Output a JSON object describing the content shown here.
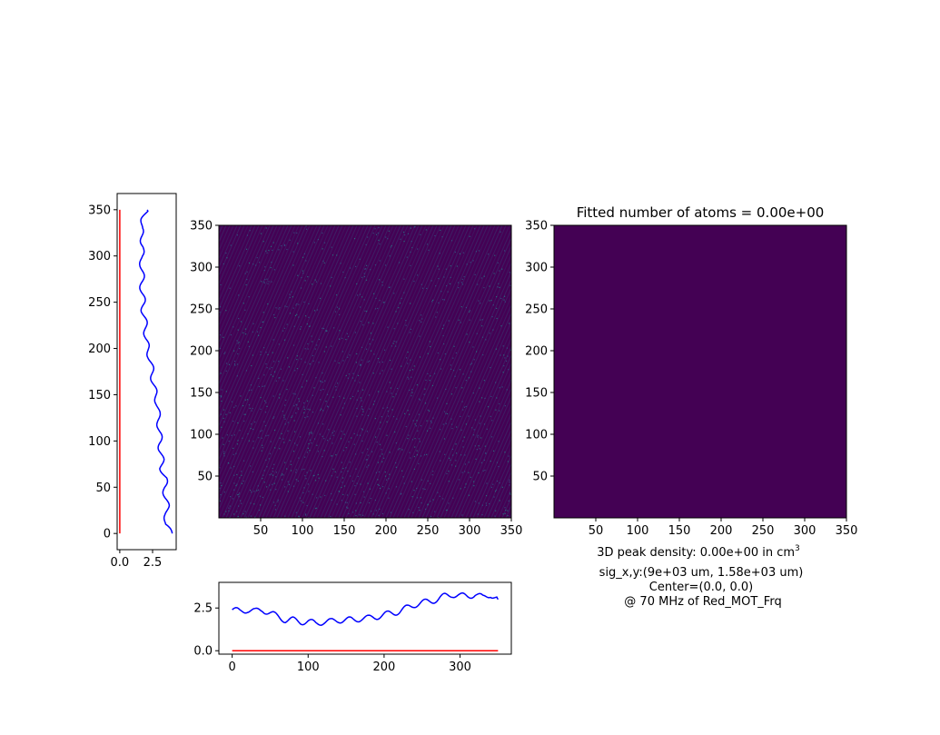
{
  "colors": {
    "profile_line": "#0000ff",
    "fit_line": "#ff0000",
    "image_dark": "#440154",
    "image_noise": "#31688e",
    "image_mid": "#21918c",
    "axes": "#000000"
  },
  "right_panel": {
    "title": "Fitted number of atoms = 0.00e+00",
    "annotations": {
      "density_prefix": "3D peak density: 0.00e+00 in cm",
      "density_exp": "3",
      "sigma": "sig_x,y:(9e+03 um, 1.58e+03 um)",
      "center": "Center=(0.0, 0.0)",
      "freq": "@ 70 MHz of Red_MOT_Frq"
    }
  },
  "chart_data": [
    {
      "id": "left-profile",
      "type": "line",
      "orientation": "vertical",
      "xlim": [
        -0.2,
        4.3
      ],
      "ylim": [
        -17.5,
        367.5
      ],
      "xticks": [
        0.0,
        2.5
      ],
      "xtick_labels": [
        "0.0",
        "2.5"
      ],
      "yticks": [
        0,
        50,
        100,
        150,
        200,
        250,
        300,
        350
      ],
      "ytick_labels": [
        "0",
        "50",
        "100",
        "150",
        "200",
        "250",
        "300",
        "350"
      ],
      "series": [
        {
          "color": "blue",
          "y": [
            0,
            10,
            20,
            30,
            40,
            50,
            60,
            70,
            80,
            90,
            100,
            110,
            120,
            130,
            140,
            150,
            160,
            170,
            180,
            190,
            200,
            210,
            220,
            230,
            240,
            250,
            260,
            270,
            280,
            290,
            300,
            310,
            320,
            330,
            340,
            350
          ],
          "x": [
            4.0,
            3.4,
            3.6,
            3.6,
            3.5,
            3.4,
            3.5,
            3.2,
            3.2,
            3.1,
            3.1,
            3.0,
            3.0,
            2.9,
            2.9,
            2.7,
            2.6,
            2.5,
            2.4,
            2.3,
            2.1,
            2.0,
            2.0,
            1.9,
            1.8,
            1.8,
            1.7,
            1.7,
            1.7,
            1.7,
            1.6,
            1.8,
            1.7,
            1.6,
            1.8,
            2.1
          ]
        },
        {
          "color": "red",
          "y": [
            0,
            350
          ],
          "x": [
            0.0,
            0.0
          ]
        }
      ]
    },
    {
      "id": "center-image",
      "type": "heatmap",
      "xlim": [
        0,
        350
      ],
      "ylim": [
        0,
        350
      ],
      "xticks": [
        50,
        100,
        150,
        200,
        250,
        300,
        350
      ],
      "xtick_labels": [
        "50",
        "100",
        "150",
        "200",
        "250",
        "300",
        "350"
      ],
      "yticks": [
        50,
        100,
        150,
        200,
        250,
        300,
        350
      ],
      "ytick_labels": [
        "50",
        "100",
        "150",
        "200",
        "250",
        "300",
        "350"
      ],
      "colormap": "viridis"
    },
    {
      "id": "bottom-profile",
      "type": "line",
      "xlim": [
        -17.5,
        367.5
      ],
      "ylim": [
        -0.2,
        4.0
      ],
      "xticks": [
        0,
        100,
        200,
        300
      ],
      "xtick_labels": [
        "0",
        "100",
        "200",
        "300"
      ],
      "yticks": [
        0.0,
        2.5
      ],
      "ytick_labels": [
        "0.0",
        "2.5"
      ],
      "series": [
        {
          "color": "blue",
          "x": [
            0,
            10,
            20,
            30,
            40,
            50,
            60,
            70,
            80,
            90,
            100,
            110,
            120,
            130,
            140,
            150,
            160,
            170,
            180,
            190,
            200,
            210,
            220,
            230,
            240,
            250,
            260,
            270,
            280,
            290,
            300,
            310,
            320,
            330,
            340,
            350
          ],
          "y": [
            2.4,
            2.3,
            2.4,
            2.3,
            2.4,
            2.2,
            2.0,
            1.8,
            1.8,
            1.7,
            1.7,
            1.6,
            1.7,
            1.7,
            1.8,
            1.8,
            1.8,
            1.9,
            1.9,
            2.0,
            2.1,
            2.2,
            2.3,
            2.5,
            2.7,
            2.8,
            2.9,
            3.0,
            3.2,
            3.3,
            3.2,
            3.2,
            3.3,
            3.1,
            3.3,
            3.0
          ]
        },
        {
          "color": "red",
          "x": [
            0,
            350
          ],
          "y": [
            0.0,
            0.0
          ]
        }
      ]
    },
    {
      "id": "right-image",
      "type": "heatmap",
      "title": "Fitted number of atoms = 0.00e+00",
      "xlim": [
        0,
        350
      ],
      "ylim": [
        0,
        350
      ],
      "xticks": [
        50,
        100,
        150,
        200,
        250,
        300,
        350
      ],
      "xtick_labels": [
        "50",
        "100",
        "150",
        "200",
        "250",
        "300",
        "350"
      ],
      "yticks": [
        50,
        100,
        150,
        200,
        250,
        300,
        350
      ],
      "ytick_labels": [
        "50",
        "100",
        "150",
        "200",
        "250",
        "300",
        "350"
      ],
      "colormap": "viridis",
      "uniform_value": 0
    }
  ]
}
